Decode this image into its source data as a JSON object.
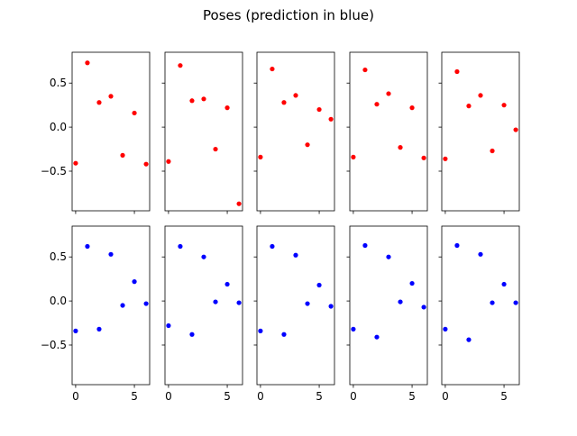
{
  "figure": {
    "title": "Poses (prediction in blue)"
  },
  "chart_data": {
    "type": "scatter",
    "title": "Poses (prediction in blue)",
    "layout": "2 rows x 5 columns, shared axes",
    "xlim": [
      -0.3,
      6.3
    ],
    "ylim": [
      -0.95,
      0.85
    ],
    "xticks": [
      0,
      5
    ],
    "yticks": [
      -0.5,
      0.0,
      0.5
    ],
    "xtick_labels": [
      "0",
      "5"
    ],
    "ytick_labels": [
      "−0.5",
      "0.0",
      "0.5"
    ],
    "colors": {
      "ground_truth": "#ff0000",
      "prediction": "#0000ff"
    },
    "x": [
      0,
      1,
      2,
      3,
      4,
      5,
      6
    ],
    "rows": [
      {
        "color": "#ff0000",
        "panels": [
          {
            "y": [
              -0.41,
              0.73,
              0.28,
              0.35,
              -0.32,
              0.16,
              -0.42
            ]
          },
          {
            "y": [
              -0.39,
              0.7,
              0.3,
              0.32,
              -0.25,
              0.22,
              -0.87
            ]
          },
          {
            "y": [
              -0.34,
              0.66,
              0.28,
              0.36,
              -0.2,
              0.2,
              0.09
            ]
          },
          {
            "y": [
              -0.34,
              0.65,
              0.26,
              0.38,
              -0.23,
              0.22,
              -0.35
            ]
          },
          {
            "y": [
              -0.36,
              0.63,
              0.24,
              0.36,
              -0.27,
              0.25,
              -0.03
            ]
          }
        ]
      },
      {
        "color": "#0000ff",
        "panels": [
          {
            "y": [
              -0.34,
              0.62,
              -0.32,
              0.53,
              -0.05,
              0.22,
              -0.03
            ]
          },
          {
            "y": [
              -0.28,
              0.62,
              -0.38,
              0.5,
              -0.01,
              0.19,
              -0.02
            ]
          },
          {
            "y": [
              -0.34,
              0.62,
              -0.38,
              0.52,
              -0.03,
              0.18,
              -0.06
            ]
          },
          {
            "y": [
              -0.32,
              0.63,
              -0.41,
              0.5,
              -0.01,
              0.2,
              -0.07
            ]
          },
          {
            "y": [
              -0.32,
              0.63,
              -0.44,
              0.53,
              -0.02,
              0.19,
              -0.02
            ]
          }
        ]
      }
    ]
  }
}
